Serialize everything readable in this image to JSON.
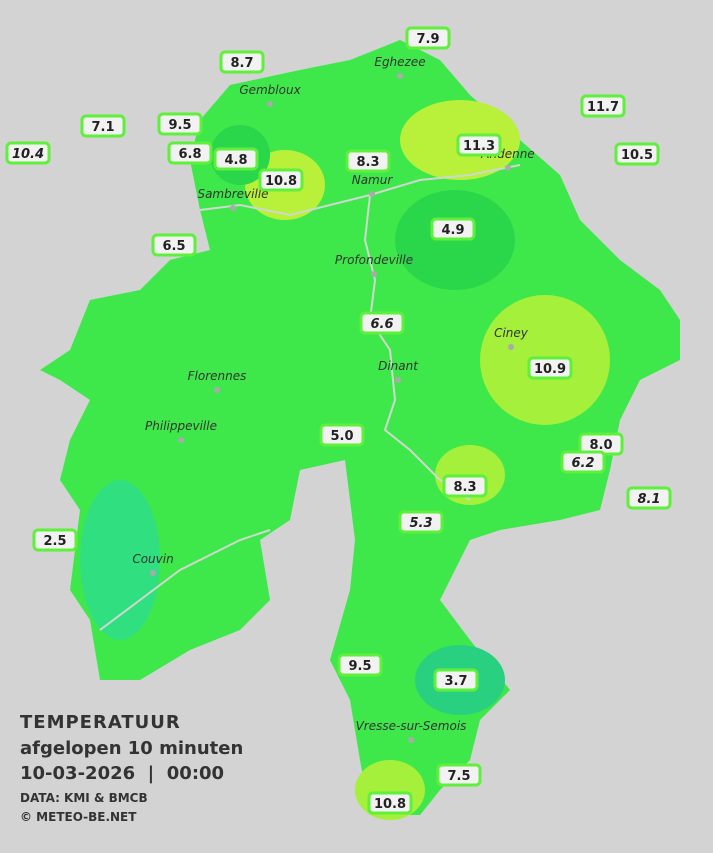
{
  "cities": [
    "Eghezee",
    "Gembloux",
    "Andenne",
    "Namur",
    "Sambreville",
    "Profondeville",
    "Ciney",
    "Dinant",
    "Florennes",
    "Philippeville",
    "Couvin",
    "Vresse-sur-Semois"
  ],
  "stations": [
    "7.9",
    "8.7",
    "7.1",
    "9.5",
    "11.7",
    "10.4",
    "6.8",
    "4.8",
    "8.3",
    "11.3",
    "10.5",
    "10.8",
    "6.5",
    "4.9",
    "6.6",
    "10.9",
    "5.0",
    "8.0",
    "6.2",
    "8.1",
    "8.3",
    "5.3",
    "2.5",
    "9.5",
    "3.7",
    "7.5",
    "10.8"
  ],
  "legend": {
    "title": "TEMPERATUUR",
    "period": "afgelopen 10 minuten",
    "datetime": "10-03-2026  |  00:00",
    "source": "DATA: KMI & BMCB",
    "copyright": "© METEO-BE.NET"
  }
}
